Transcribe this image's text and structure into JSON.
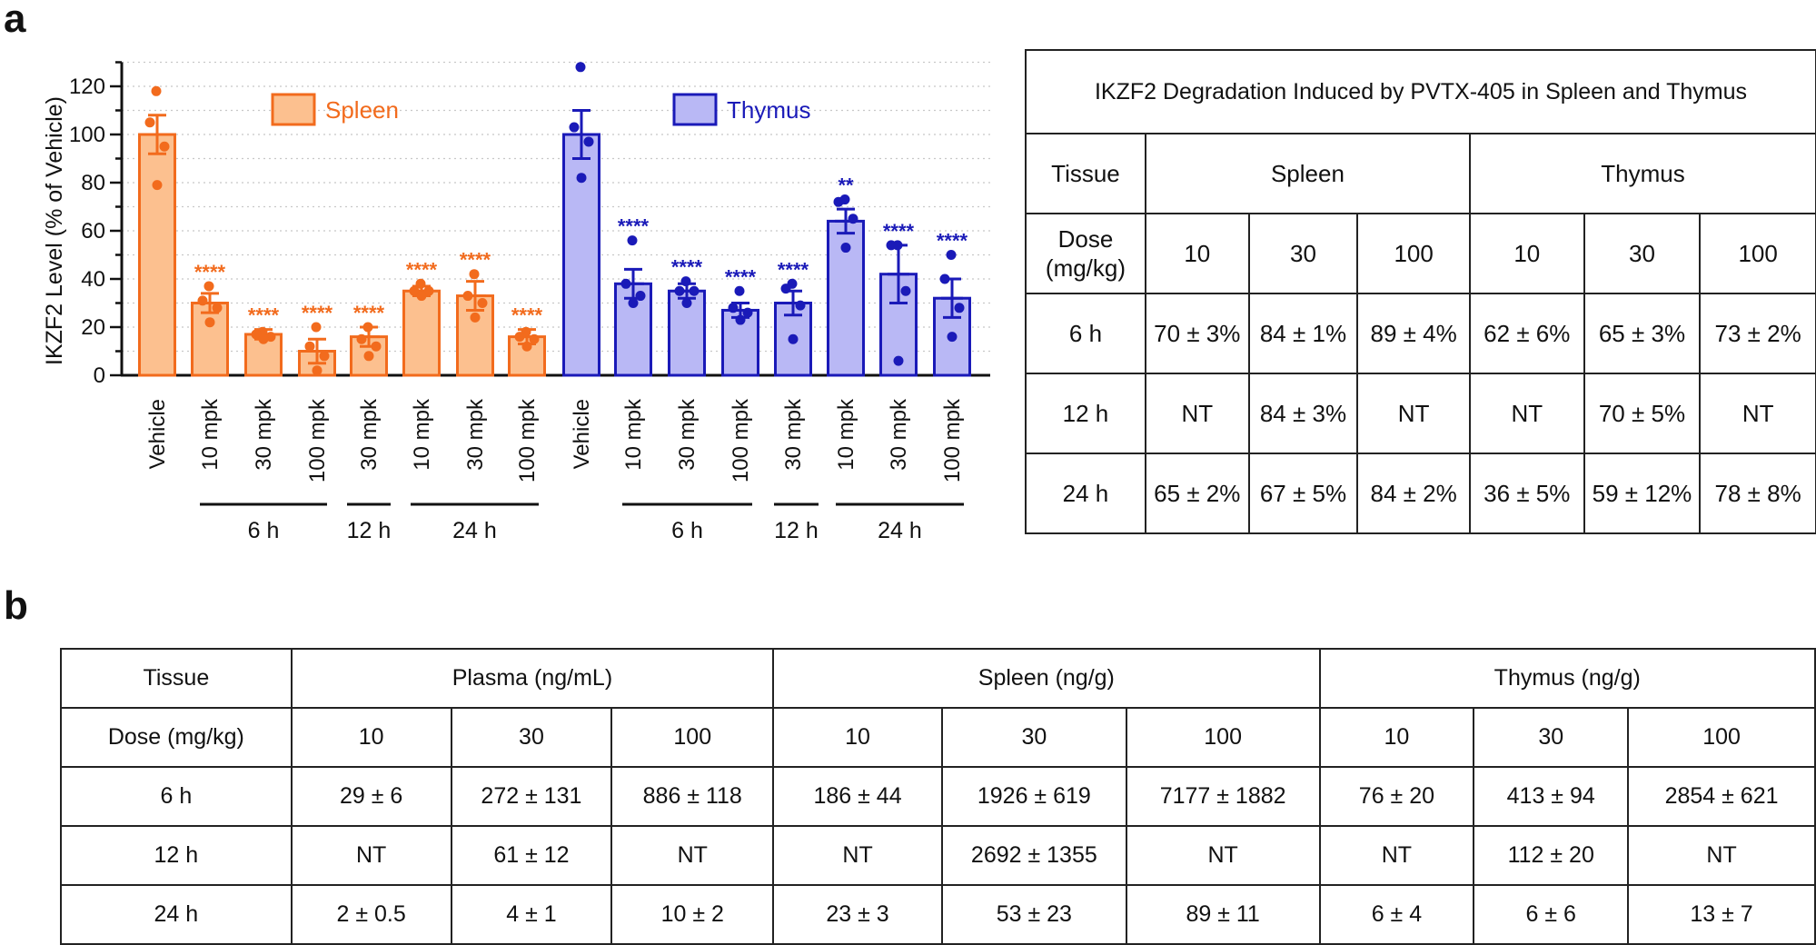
{
  "panels": {
    "a": "a",
    "b": "b"
  },
  "chart_data": {
    "type": "bar",
    "ylabel": "IKZF2 Level (% of Vehicle)",
    "ylim": [
      0,
      130
    ],
    "yticks": [
      0,
      20,
      40,
      60,
      80,
      100,
      120
    ],
    "grid": "dotted horizontal",
    "legend": {
      "placement": "top"
    },
    "colors": {
      "Spleen": {
        "fill": "#fcc08f",
        "stroke": "#f26b1d",
        "text": "#f26b1d"
      },
      "Thymus": {
        "fill": "#b9b8f5",
        "stroke": "#1a1ab8",
        "text": "#1a1ab8"
      }
    },
    "series": [
      {
        "name": "Spleen",
        "categories": [
          "Vehicle",
          "10 mpk",
          "30 mpk",
          "100 mpk",
          "30 mpk",
          "10 mpk",
          "30 mpk",
          "100 mpk"
        ],
        "values": [
          100,
          30,
          17,
          10,
          16,
          35,
          33,
          16
        ],
        "errors": [
          8,
          4,
          2,
          5,
          4,
          2,
          6,
          3
        ],
        "points": [
          [
            118,
            105,
            95,
            79
          ],
          [
            37,
            31,
            28,
            22
          ],
          [
            18,
            17,
            16,
            15
          ],
          [
            20,
            12,
            8,
            2
          ],
          [
            20,
            15,
            12,
            8
          ],
          [
            38,
            35,
            35,
            33
          ],
          [
            42,
            33,
            30,
            24
          ],
          [
            18,
            16,
            15,
            12
          ]
        ],
        "significance": [
          "",
          "****",
          "****",
          "****",
          "****",
          "****",
          "****",
          "****"
        ],
        "groups": [
          {
            "label": "6 h",
            "from": 1,
            "to": 3
          },
          {
            "label": "12 h",
            "from": 4,
            "to": 4
          },
          {
            "label": "24 h",
            "from": 5,
            "to": 7
          }
        ]
      },
      {
        "name": "Thymus",
        "categories": [
          "Vehicle",
          "10 mpk",
          "30 mpk",
          "100 mpk",
          "30 mpk",
          "10 mpk",
          "30 mpk",
          "100 mpk"
        ],
        "values": [
          100,
          38,
          35,
          27,
          30,
          64,
          42,
          32
        ],
        "errors": [
          10,
          6,
          3,
          3,
          5,
          5,
          12,
          8
        ],
        "points": [
          [
            128,
            103,
            97,
            82
          ],
          [
            56,
            38,
            33,
            30
          ],
          [
            39,
            35,
            35,
            30
          ],
          [
            35,
            28,
            26,
            23
          ],
          [
            38,
            36,
            29,
            15
          ],
          [
            73,
            72,
            65,
            53
          ],
          [
            54,
            54,
            35,
            6
          ],
          [
            50,
            40,
            28,
            16
          ]
        ],
        "significance": [
          "",
          "****",
          "****",
          "****",
          "****",
          "**",
          "****",
          "****"
        ],
        "groups": [
          {
            "label": "6 h",
            "from": 1,
            "to": 3
          },
          {
            "label": "12 h",
            "from": 4,
            "to": 4
          },
          {
            "label": "24 h",
            "from": 5,
            "to": 7
          }
        ]
      }
    ]
  },
  "table_a": {
    "title": "IKZF2 Degradation Induced by PVTX-405 in Spleen and Thymus",
    "tissue_label": "Tissue",
    "spleen": "Spleen",
    "thymus": "Thymus",
    "dose_label": "Dose (mg/kg)",
    "doses": [
      "10",
      "30",
      "100",
      "10",
      "30",
      "100"
    ],
    "rows": [
      {
        "time": "6 h",
        "cells": [
          "70 ± 3%",
          "84 ± 1%",
          "89 ± 4%",
          "62 ± 6%",
          "65 ± 3%",
          "73 ± 2%"
        ]
      },
      {
        "time": "12 h",
        "cells": [
          "NT",
          "84 ± 3%",
          "NT",
          "NT",
          "70 ± 5%",
          "NT"
        ]
      },
      {
        "time": "24 h",
        "cells": [
          "65 ± 2%",
          "67 ± 5%",
          "84 ± 2%",
          "36 ± 5%",
          "59 ± 12%",
          "78 ± 8%"
        ]
      }
    ]
  },
  "table_b": {
    "tissue_label": "Tissue",
    "plasma": "Plasma (ng/mL)",
    "spleen": "Spleen (ng/g)",
    "thymus": "Thymus (ng/g)",
    "dose_label": "Dose (mg/kg)",
    "doses": [
      "10",
      "30",
      "100",
      "10",
      "30",
      "100",
      "10",
      "30",
      "100"
    ],
    "rows": [
      {
        "time": "6 h",
        "cells": [
          "29 ± 6",
          "272 ± 131",
          "886 ± 118",
          "186 ± 44",
          "1926 ± 619",
          "7177 ± 1882",
          "76 ± 20",
          "413 ± 94",
          "2854 ± 621"
        ]
      },
      {
        "time": "12 h",
        "cells": [
          "NT",
          "61 ± 12",
          "NT",
          "NT",
          "2692 ± 1355",
          "NT",
          "NT",
          "112 ± 20",
          "NT"
        ]
      },
      {
        "time": "24 h",
        "cells": [
          "2 ± 0.5",
          "4 ± 1",
          "10 ± 2",
          "23 ± 3",
          "53 ± 23",
          "89 ± 11",
          "6 ± 4",
          "6 ± 6",
          "13 ± 7"
        ]
      }
    ]
  }
}
